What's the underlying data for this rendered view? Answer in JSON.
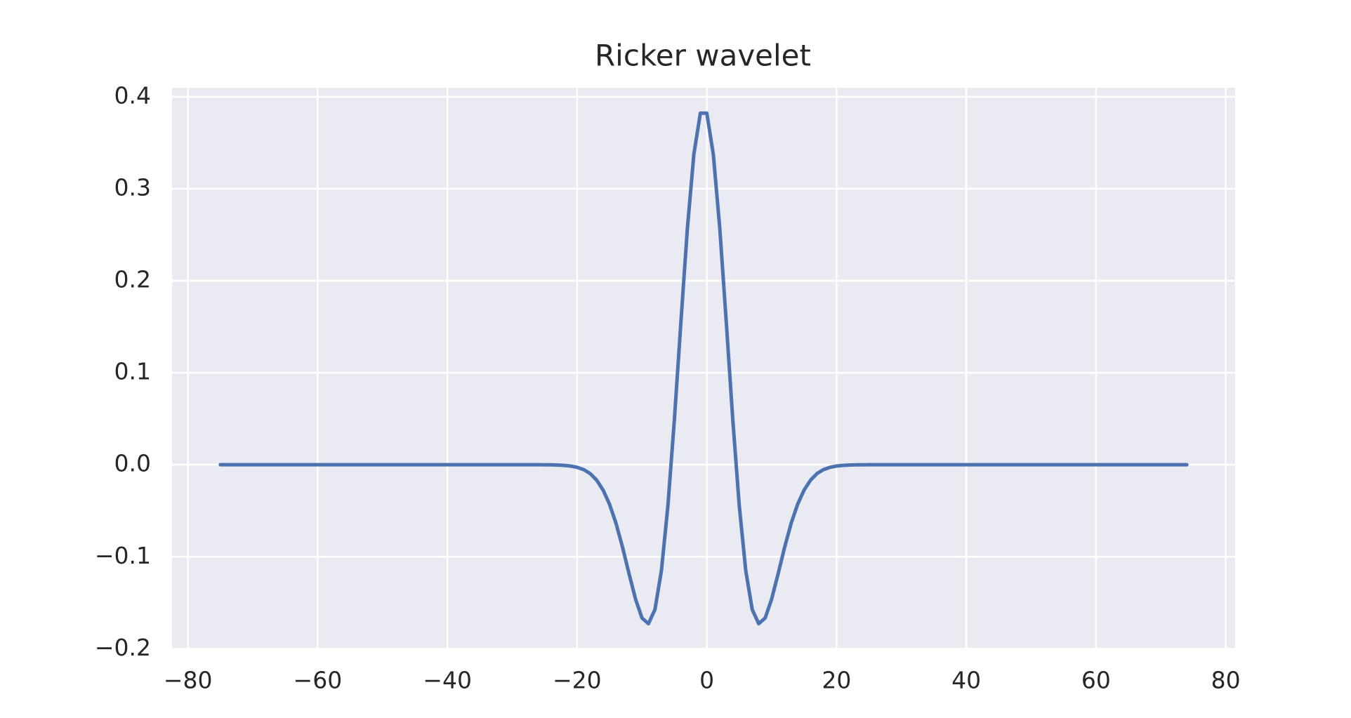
{
  "chart_data": {
    "type": "line",
    "title": "Ricker wavelet",
    "x": [
      -75,
      -74,
      -73,
      -72,
      -71,
      -70,
      -69,
      -68,
      -67,
      -66,
      -65,
      -64,
      -63,
      -62,
      -61,
      -60,
      -59,
      -58,
      -57,
      -56,
      -55,
      -54,
      -53,
      -52,
      -51,
      -50,
      -49,
      -48,
      -47,
      -46,
      -45,
      -44,
      -43,
      -42,
      -41,
      -40,
      -39,
      -38,
      -37,
      -36,
      -35,
      -34,
      -33,
      -32,
      -31,
      -30,
      -29,
      -28,
      -27,
      -26,
      -25,
      -24,
      -23,
      -22,
      -21,
      -20,
      -19,
      -18,
      -17,
      -16,
      -15,
      -14,
      -13,
      -12,
      -11,
      -10,
      -9,
      -8,
      -7,
      -6,
      -5,
      -4,
      -3,
      -2,
      -1,
      0,
      1,
      2,
      3,
      4,
      5,
      6,
      7,
      8,
      9,
      10,
      11,
      12,
      13,
      14,
      15,
      16,
      17,
      18,
      19,
      20,
      21,
      22,
      23,
      24,
      25,
      26,
      27,
      28,
      29,
      30,
      31,
      32,
      33,
      34,
      35,
      36,
      37,
      38,
      39,
      40,
      41,
      42,
      43,
      44,
      45,
      46,
      47,
      48,
      49,
      50,
      51,
      52,
      53,
      54,
      55,
      56,
      57,
      58,
      59,
      60,
      61,
      62,
      63,
      64,
      65,
      66,
      67,
      68,
      69,
      70,
      71,
      72,
      73,
      74
    ],
    "series": [
      {
        "color": "#4c72b0",
        "values": [
          0,
          0,
          0,
          0,
          0,
          0,
          0,
          0,
          0,
          0,
          0,
          0,
          0,
          0,
          0,
          0,
          0,
          0,
          0,
          0,
          0,
          0,
          0,
          0,
          0,
          0,
          0,
          0,
          0,
          0,
          0,
          0,
          0,
          0,
          0,
          0,
          0,
          0,
          0,
          0,
          0,
          0,
          0,
          0,
          0,
          0,
          0,
          0,
          0,
          0,
          -0.0001,
          -0.0001,
          -0.0003,
          -0.0007,
          -0.0014,
          -0.0028,
          -0.0052,
          -0.0095,
          -0.0166,
          -0.0274,
          -0.0429,
          -0.0637,
          -0.0895,
          -0.1182,
          -0.1458,
          -0.1665,
          -0.1728,
          -0.1574,
          -0.115,
          -0.0445,
          0.0492,
          0.1548,
          0.2567,
          0.3374,
          0.3821,
          0.3821,
          0.3374,
          0.2567,
          0.1548,
          0.0492,
          -0.0445,
          -0.115,
          -0.1574,
          -0.1728,
          -0.1665,
          -0.1458,
          -0.1182,
          -0.0895,
          -0.0637,
          -0.0429,
          -0.0274,
          -0.0166,
          -0.0095,
          -0.0052,
          -0.0028,
          -0.0014,
          -0.0007,
          -0.0003,
          -0.0001,
          -0.0001,
          0,
          0,
          0,
          0,
          0,
          0,
          0,
          0,
          0,
          0,
          0,
          0,
          0,
          0,
          0,
          0,
          0,
          0,
          0,
          0,
          0,
          0,
          0,
          0,
          0,
          0,
          0,
          0,
          0,
          0,
          0,
          0,
          0,
          0,
          0,
          0,
          0,
          0,
          0,
          0,
          0,
          0,
          0,
          0,
          0,
          0,
          0,
          0,
          0,
          0
        ]
      }
    ],
    "xlim": [
      -82.45,
      81.45
    ],
    "ylim": [
      -0.2005,
      0.4098
    ],
    "xticks": [
      {
        "value": -80,
        "label": "−80"
      },
      {
        "value": -60,
        "label": "−60"
      },
      {
        "value": -40,
        "label": "−40"
      },
      {
        "value": -20,
        "label": "−20"
      },
      0,
      20,
      40,
      60,
      80
    ],
    "yticks": [
      {
        "value": -0.2,
        "label": "−0.2"
      },
      {
        "value": -0.1,
        "label": "−0.1"
      },
      {
        "value": 0,
        "label": "0.0"
      },
      0.1,
      0.2,
      0.3,
      0.4
    ],
    "grid": true,
    "background": "#eaeaf2"
  }
}
